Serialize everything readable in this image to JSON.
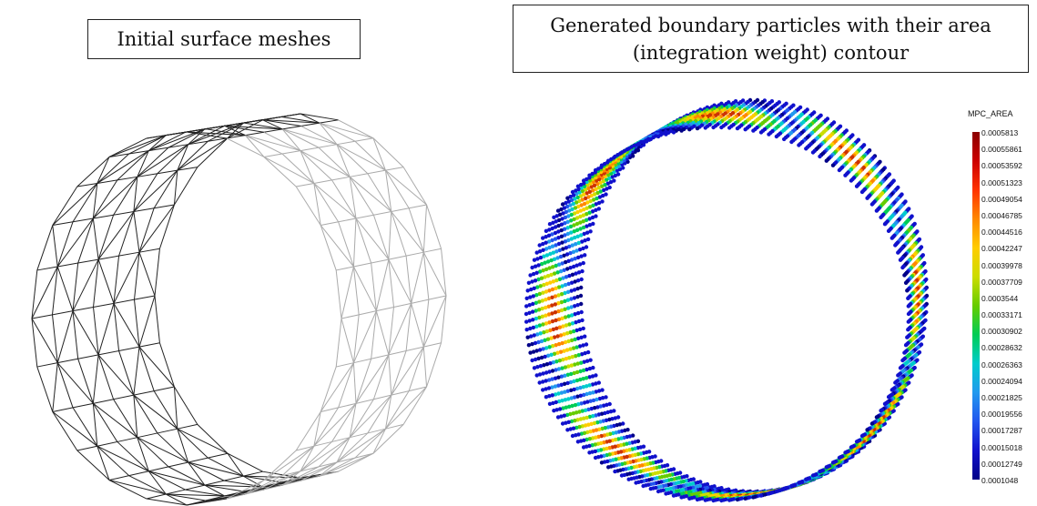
{
  "captions": {
    "left": "Initial surface meshes",
    "right_line1": "Generated boundary particles with their area",
    "right_line2": "(integration weight) contour"
  },
  "legend": {
    "title": "MPC_AREA",
    "ticks": [
      "0.0005813",
      "0.00055861",
      "0.00053592",
      "0.00051323",
      "0.00049054",
      "0.00046785",
      "0.00044516",
      "0.00042247",
      "0.00039978",
      "0.00037709",
      "0.0003544",
      "0.00033171",
      "0.00030902",
      "0.00028632",
      "0.00026363",
      "0.00024094",
      "0.00021825",
      "0.00019556",
      "0.00017287",
      "0.00015018",
      "0.00012749",
      "0.0001048"
    ],
    "colors_top_to_bottom": [
      "#8b0000",
      "#cc0000",
      "#ff3300",
      "#ff8800",
      "#ffcc00",
      "#ccdd00",
      "#66cc00",
      "#00cc55",
      "#00cccc",
      "#2299ee",
      "#2255ee",
      "#1111cc",
      "#000088"
    ]
  }
}
